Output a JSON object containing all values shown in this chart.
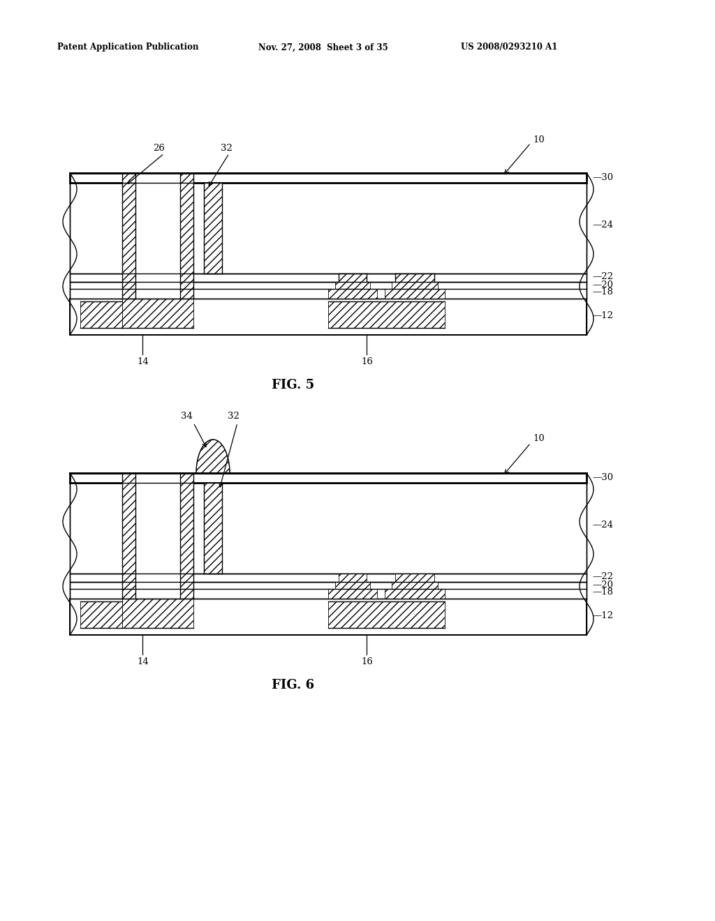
{
  "bg_color": "#ffffff",
  "header_left": "Patent Application Publication",
  "header_mid": "Nov. 27, 2008  Sheet 3 of 35",
  "header_right": "US 2008/0293210 A1"
}
